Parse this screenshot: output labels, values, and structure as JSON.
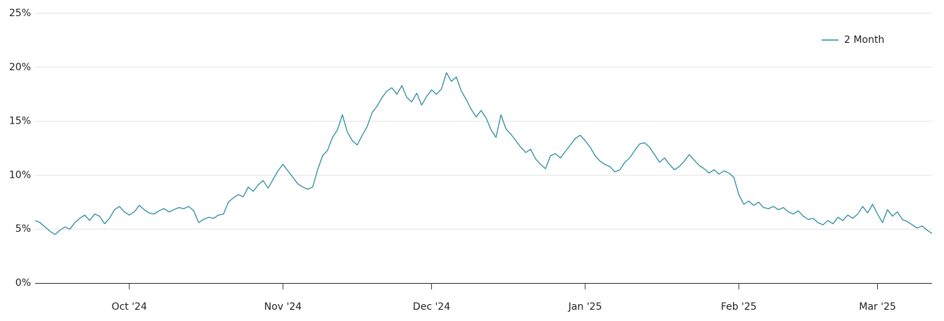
{
  "chart_data": {
    "type": "line",
    "categories": [
      null,
      null,
      null,
      null,
      null,
      null,
      null,
      null,
      null,
      null,
      null,
      null,
      null,
      null,
      null,
      null,
      null,
      null,
      null,
      "Oct '24",
      null,
      null,
      null,
      null,
      null,
      null,
      null,
      null,
      null,
      null,
      null,
      null,
      null,
      null,
      null,
      null,
      null,
      null,
      null,
      null,
      null,
      null,
      null,
      null,
      null,
      null,
      null,
      null,
      null,
      null,
      "Nov '24",
      null,
      null,
      null,
      null,
      null,
      null,
      null,
      null,
      null,
      null,
      null,
      null,
      null,
      null,
      null,
      null,
      null,
      null,
      null,
      null,
      null,
      null,
      null,
      null,
      null,
      null,
      null,
      null,
      null,
      "Dec '24",
      null,
      null,
      null,
      null,
      null,
      null,
      null,
      null,
      null,
      null,
      null,
      null,
      null,
      null,
      null,
      null,
      null,
      null,
      null,
      null,
      null,
      null,
      null,
      null,
      null,
      null,
      null,
      null,
      null,
      null,
      "Jan '25",
      null,
      null,
      null,
      null,
      null,
      null,
      null,
      null,
      null,
      null,
      null,
      null,
      null,
      null,
      null,
      null,
      null,
      null,
      null,
      null,
      null,
      null,
      null,
      null,
      null,
      null,
      null,
      null,
      null,
      null,
      "Feb '25",
      null,
      null,
      null,
      null,
      null,
      null,
      null,
      null,
      null,
      null,
      null,
      null,
      null,
      null,
      null,
      null,
      null,
      null,
      null,
      null,
      null,
      null,
      null,
      null,
      null,
      null,
      null,
      "Mar '25",
      null,
      null,
      null,
      null,
      null,
      null,
      null,
      null,
      null,
      null,
      null
    ],
    "series": [
      {
        "name": "2 Month",
        "color": "#2a8c9e",
        "values": [
          5.8,
          5.6,
          5.2,
          4.8,
          4.5,
          4.9,
          5.2,
          5.0,
          5.6,
          6.0,
          6.3,
          5.8,
          6.4,
          6.2,
          5.5,
          6.0,
          6.8,
          7.1,
          6.6,
          6.3,
          6.6,
          7.2,
          6.8,
          6.5,
          6.4,
          6.7,
          6.9,
          6.6,
          6.8,
          7.0,
          6.9,
          7.1,
          6.7,
          5.6,
          5.9,
          6.1,
          6.0,
          6.3,
          6.4,
          7.5,
          7.9,
          8.2,
          8.0,
          8.9,
          8.5,
          9.1,
          9.5,
          8.8,
          9.6,
          10.4,
          11.0,
          10.4,
          9.8,
          9.2,
          8.9,
          8.7,
          8.9,
          10.5,
          11.8,
          12.3,
          13.5,
          14.2,
          15.6,
          14.0,
          13.2,
          12.8,
          13.7,
          14.5,
          15.8,
          16.4,
          17.2,
          17.8,
          18.1,
          17.5,
          18.3,
          17.2,
          16.8,
          17.6,
          16.5,
          17.3,
          17.9,
          17.5,
          18.0,
          19.5,
          18.7,
          19.1,
          17.8,
          17.0,
          16.1,
          15.4,
          16.0,
          15.3,
          14.2,
          13.5,
          15.6,
          14.3,
          13.8,
          13.2,
          12.6,
          12.1,
          12.4,
          11.5,
          11.0,
          10.6,
          11.8,
          12.0,
          11.6,
          12.2,
          12.8,
          13.4,
          13.7,
          13.2,
          12.6,
          11.8,
          11.3,
          11.0,
          10.8,
          10.3,
          10.5,
          11.2,
          11.6,
          12.3,
          12.9,
          13.0,
          12.6,
          11.9,
          11.2,
          11.6,
          11.0,
          10.5,
          10.8,
          11.3,
          11.9,
          11.4,
          10.9,
          10.6,
          10.2,
          10.5,
          10.1,
          10.4,
          10.2,
          9.8,
          8.2,
          7.3,
          7.6,
          7.2,
          7.5,
          7.0,
          6.9,
          7.1,
          6.8,
          7.0,
          6.6,
          6.4,
          6.7,
          6.2,
          5.9,
          6.0,
          5.6,
          5.4,
          5.8,
          5.5,
          6.1,
          5.8,
          6.3,
          6.0,
          6.4,
          7.1,
          6.5,
          7.3,
          6.4,
          5.6,
          6.8,
          6.2,
          6.6,
          5.9,
          5.7,
          5.4,
          5.1,
          5.3,
          4.9,
          4.6
        ]
      }
    ],
    "ylim": [
      0,
      25
    ],
    "yticks": [
      {
        "value": 0,
        "label": "0%"
      },
      {
        "value": 5,
        "label": "5%"
      },
      {
        "value": 10,
        "label": "10%"
      },
      {
        "value": 15,
        "label": "15%"
      },
      {
        "value": 20,
        "label": "20%"
      },
      {
        "value": 25,
        "label": "25%"
      }
    ],
    "grid": true,
    "legend": "top-right"
  }
}
